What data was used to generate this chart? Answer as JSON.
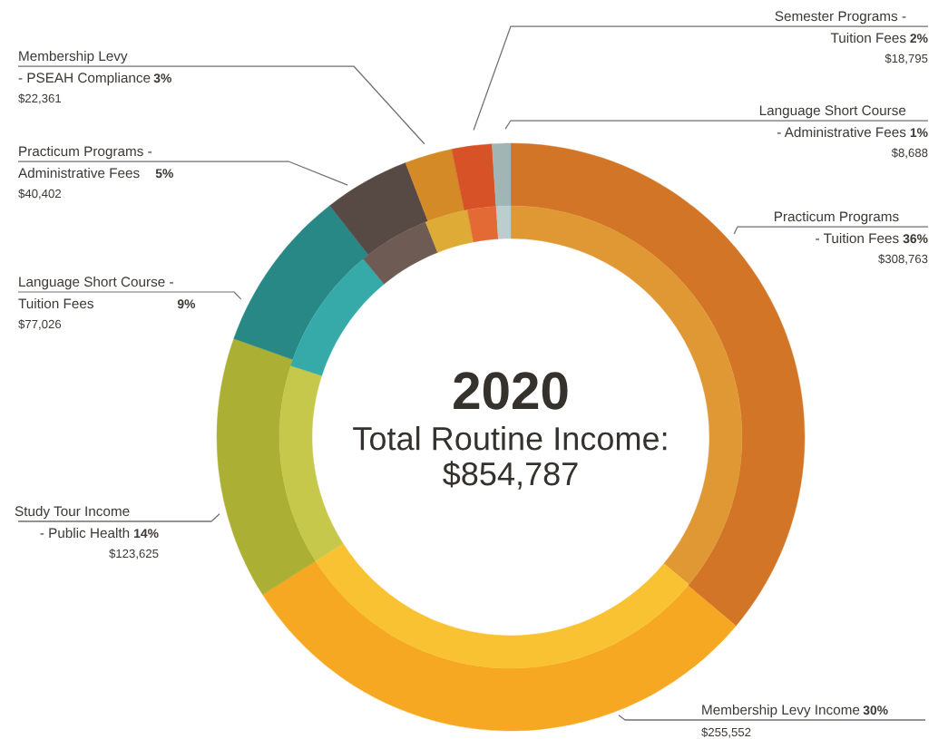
{
  "chart_data": {
    "type": "donut",
    "title": "2020",
    "subtitle": "Total Routine Income:\n$854,787",
    "categories": [
      "Practicum Programs\n- Tuition Fees",
      "Membership Levy Income",
      "Study Tour Income\n- Public Health",
      "Language Short Course -\nTuition Fees",
      "Practicum Programs -\nAdministrative Fees",
      "Membership Levy\n- PSEAH Compliance",
      "Semester Programs -\nTuition Fees",
      "Language Short Course\n- Administrative Fees"
    ],
    "series": [
      {
        "values": [
          308763,
          255552,
          123625,
          77026,
          40402,
          22361,
          18795,
          8688
        ],
        "colors": [
          "#d37527",
          "#f6a823",
          "#abb035",
          "#288885",
          "#574a45",
          "#d38a27",
          "#d85228",
          "#a2b5b5"
        ],
        "value_labels": [
          "$308,763",
          "$255,552",
          "$123,625",
          "$77,026",
          "$40,402",
          "$22,361",
          "$18,795",
          "$8,688"
        ]
      },
      {
        "values": [
          36,
          30,
          14,
          9,
          5,
          3,
          2,
          1
        ],
        "colors": [
          "#e09834",
          "#f9c232",
          "#c5c84a",
          "#35aaa9",
          "#6e5b53",
          "#ddab36",
          "#e46a35",
          "#bccdcd"
        ],
        "value_labels": [
          "36%",
          "30%",
          "14%",
          "9%",
          "5%",
          "3%",
          "2%",
          "1%"
        ]
      }
    ]
  }
}
